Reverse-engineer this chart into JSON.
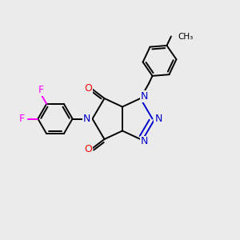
{
  "bg_color": "#ebebeb",
  "atom_colors": {
    "C": "#000000",
    "N": "#0000cc",
    "O": "#ff0000",
    "F": "#ff00ff"
  },
  "bond_color": "#000000",
  "bond_width": 1.4,
  "figsize": [
    3.0,
    3.0
  ],
  "dpi": 100,
  "xlim": [
    0,
    10
  ],
  "ylim": [
    0,
    10
  ]
}
